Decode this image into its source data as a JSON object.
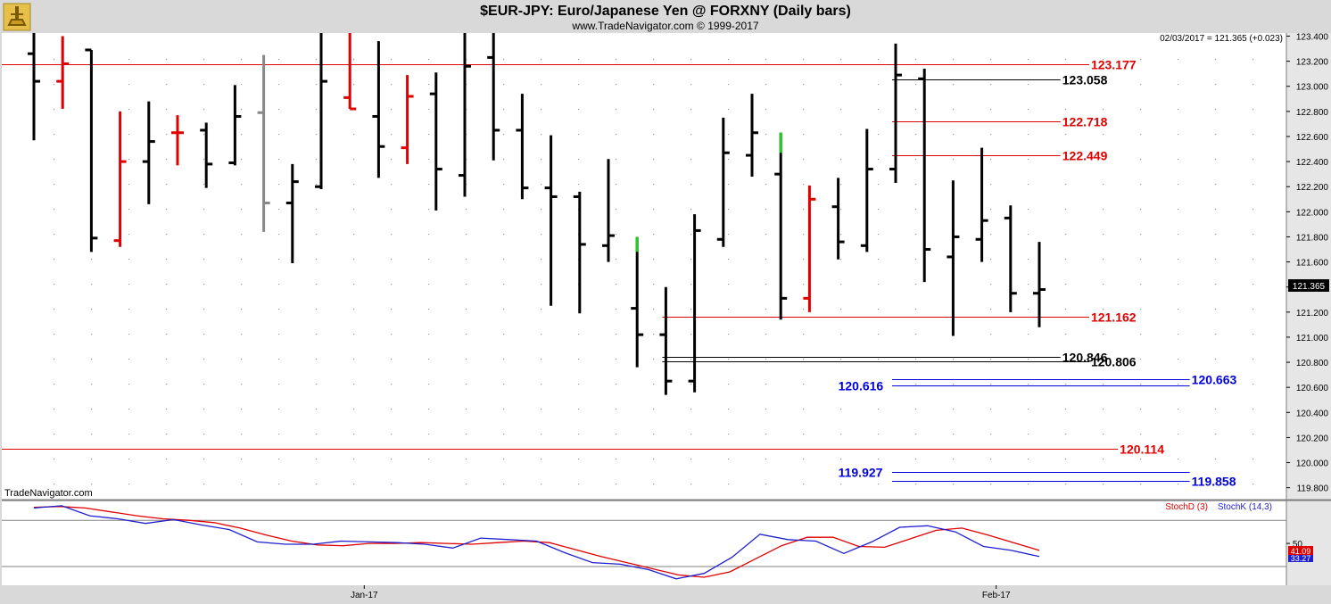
{
  "header": {
    "title": "$EUR-JPY:  Euro/Japanese Yen @ FORXNY  (Daily bars)",
    "subtitle": "www.TradeNavigator.com © 1999-2017",
    "watermark": "TradeNavigator.com",
    "last_info": "02/03/2017 = 121.365 (+0.023)"
  },
  "colors": {
    "background": "#ffffff",
    "frame": "#d9d9d9",
    "bar_up": "#000000",
    "bar_red": "#e00000",
    "bar_gray": "#888888",
    "bar_green": "#22cc22",
    "red_level": "#e00000",
    "black_level": "#000000",
    "blue_level": "#0000e0",
    "stoch_k": "#1f1fd0",
    "stoch_d": "#e00000"
  },
  "chart_data": [
    {
      "type": "ohlc",
      "title": "$EUR-JPY:  Euro/Japanese Yen @ FORXNY  (Daily bars)",
      "ylim": [
        119.65,
        123.5
      ],
      "y_ticks": [
        "123.400",
        "123.200",
        "123.000",
        "122.800",
        "122.600",
        "122.400",
        "122.200",
        "122.000",
        "121.800",
        "121.600",
        "121.400",
        "121.200",
        "121.000",
        "120.800",
        "120.600",
        "120.400",
        "120.200",
        "120.000",
        "119.800"
      ],
      "x_labels": [
        {
          "bar": 11.5,
          "label": "Jan-17"
        },
        {
          "bar": 33.5,
          "label": "Feb-17"
        }
      ],
      "last_price": "121.365",
      "bars": [
        {
          "o": 123.26,
          "h": 123.48,
          "l": 122.57,
          "c": 123.04,
          "color": "black"
        },
        {
          "o": 123.04,
          "h": 123.4,
          "l": 122.82,
          "c": 123.18,
          "color": "red"
        },
        {
          "o": 123.29,
          "h": 123.29,
          "l": 121.68,
          "c": 121.79,
          "color": "black"
        },
        {
          "o": 121.77,
          "h": 122.8,
          "l": 121.72,
          "c": 122.4,
          "color": "red"
        },
        {
          "o": 122.4,
          "h": 122.88,
          "l": 122.06,
          "c": 122.56,
          "color": "black"
        },
        {
          "o": 122.63,
          "h": 122.77,
          "l": 122.37,
          "c": 122.63,
          "color": "red"
        },
        {
          "o": 122.65,
          "h": 122.71,
          "l": 122.19,
          "c": 122.38,
          "color": "black"
        },
        {
          "o": 122.39,
          "h": 123.01,
          "l": 122.37,
          "c": 122.76,
          "color": "black"
        },
        {
          "o": 122.79,
          "h": 123.25,
          "l": 121.84,
          "c": 122.07,
          "color": "gray"
        },
        {
          "o": 122.07,
          "h": 122.38,
          "l": 121.59,
          "c": 122.24,
          "color": "black"
        },
        {
          "o": 122.2,
          "h": 123.48,
          "l": 122.18,
          "c": 123.04,
          "color": "black"
        },
        {
          "o": 122.91,
          "h": 123.48,
          "l": 122.82,
          "c": 122.82,
          "color": "red"
        },
        {
          "o": 122.76,
          "h": 123.36,
          "l": 122.27,
          "c": 122.52,
          "color": "black"
        },
        {
          "o": 122.51,
          "h": 123.09,
          "l": 122.38,
          "c": 122.92,
          "color": "red"
        },
        {
          "o": 122.94,
          "h": 123.11,
          "l": 122.01,
          "c": 122.34,
          "color": "black"
        },
        {
          "o": 122.29,
          "h": 123.48,
          "l": 122.12,
          "c": 123.16,
          "color": "black"
        },
        {
          "o": 123.23,
          "h": 123.48,
          "l": 122.41,
          "c": 122.65,
          "color": "black"
        },
        {
          "o": 122.65,
          "h": 122.94,
          "l": 122.1,
          "c": 122.19,
          "color": "black"
        },
        {
          "o": 122.19,
          "h": 122.61,
          "l": 121.25,
          "c": 122.12,
          "color": "black"
        },
        {
          "o": 122.12,
          "h": 122.16,
          "l": 121.19,
          "c": 121.74,
          "color": "black"
        },
        {
          "o": 121.73,
          "h": 122.42,
          "l": 121.6,
          "c": 121.81,
          "color": "black"
        },
        {
          "o": 121.23,
          "h": 121.8,
          "l": 120.76,
          "c": 121.02,
          "color": "black",
          "top_color": "green",
          "top_from": 121.68
        },
        {
          "o": 121.02,
          "h": 121.4,
          "l": 120.54,
          "c": 120.65,
          "color": "black"
        },
        {
          "o": 120.65,
          "h": 121.98,
          "l": 120.56,
          "c": 121.85,
          "color": "black"
        },
        {
          "o": 121.78,
          "h": 122.75,
          "l": 121.72,
          "c": 122.47,
          "color": "black"
        },
        {
          "o": 122.45,
          "h": 122.94,
          "l": 122.28,
          "c": 122.63,
          "color": "black"
        },
        {
          "o": 122.3,
          "h": 122.63,
          "l": 121.14,
          "c": 121.31,
          "color": "black",
          "top_color": "green",
          "top_from": 122.47
        },
        {
          "o": 121.31,
          "h": 122.21,
          "l": 121.2,
          "c": 122.1,
          "color": "red"
        },
        {
          "o": 122.04,
          "h": 122.27,
          "l": 121.62,
          "c": 121.76,
          "color": "black"
        },
        {
          "o": 121.73,
          "h": 122.66,
          "l": 121.68,
          "c": 122.34,
          "color": "black"
        },
        {
          "o": 122.34,
          "h": 123.34,
          "l": 122.23,
          "c": 123.09,
          "color": "black"
        },
        {
          "o": 123.06,
          "h": 123.14,
          "l": 121.44,
          "c": 121.7,
          "color": "black"
        },
        {
          "o": 121.64,
          "h": 122.25,
          "l": 121.01,
          "c": 121.8,
          "color": "black"
        },
        {
          "o": 121.78,
          "h": 122.51,
          "l": 121.6,
          "c": 121.93,
          "color": "black"
        },
        {
          "o": 121.95,
          "h": 122.05,
          "l": 121.2,
          "c": 121.35,
          "color": "black"
        },
        {
          "o": 121.35,
          "h": 121.76,
          "l": 121.08,
          "c": 121.38,
          "color": "black"
        }
      ],
      "levels": [
        {
          "value": 123.177,
          "label": "123.177",
          "color": "red",
          "from_bar": -1,
          "to_bar": 36.8,
          "label_bar": 36.8
        },
        {
          "value": 123.058,
          "label": "123.058",
          "color": "black",
          "from_bar": 30,
          "to_bar": 35.8,
          "label_bar": 35.8
        },
        {
          "value": 122.718,
          "label": "122.718",
          "color": "red",
          "from_bar": 30,
          "to_bar": 35.8,
          "label_bar": 35.8
        },
        {
          "value": 122.449,
          "label": "122.449",
          "color": "red",
          "from_bar": 30,
          "to_bar": 35.8,
          "label_bar": 35.8
        },
        {
          "value": 121.162,
          "label": "121.162",
          "color": "red",
          "from_bar": 22,
          "to_bar": 36.8,
          "label_bar": 36.8
        },
        {
          "value": 120.846,
          "label": "120.846",
          "color": "black",
          "from_bar": 22,
          "to_bar": 35.8,
          "label_bar": 35.8
        },
        {
          "value": 120.806,
          "label": "120.806",
          "color": "black",
          "from_bar": 22,
          "to_bar": 36.8,
          "label_bar": 36.8
        },
        {
          "value": 120.663,
          "label": "120.663",
          "color": "blue",
          "from_bar": 30,
          "to_bar": 40.3,
          "label_bar": 40.3
        },
        {
          "value": 120.616,
          "label": "120.616",
          "color": "blue",
          "from_bar": 30,
          "to_bar": 40.3,
          "label_bar": 28.0
        },
        {
          "value": 120.114,
          "label": "120.114",
          "color": "red",
          "from_bar": -1,
          "to_bar": 37.8,
          "label_bar": 37.8
        },
        {
          "value": 119.927,
          "label": "119.927",
          "color": "blue",
          "from_bar": 30,
          "to_bar": 40.3,
          "label_bar": 28.0
        },
        {
          "value": 119.858,
          "label": "119.858",
          "color": "blue",
          "from_bar": 30,
          "to_bar": 40.3,
          "label_bar": 40.3
        }
      ]
    },
    {
      "type": "line",
      "title": "Stochastics",
      "ylim": [
        0,
        100
      ],
      "y_ticks": [
        "50"
      ],
      "series": [
        {
          "name": "StochD (3)",
          "color": "#e00000",
          "last": "41.09",
          "values": [
            97,
            98,
            96,
            91,
            86,
            82,
            80,
            77,
            70,
            61,
            53,
            48,
            47,
            50,
            50,
            51,
            50,
            49,
            51,
            53,
            51,
            42,
            33,
            25,
            17,
            9,
            6,
            13,
            30,
            47,
            58,
            58,
            46,
            45,
            56,
            67,
            70,
            61,
            51,
            41
          ]
        },
        {
          "name": "StochK (14,3)",
          "color": "#1f1fd0",
          "last": "33.27",
          "values": [
            96,
            99,
            86,
            82,
            76,
            81,
            74,
            68,
            52,
            49,
            49,
            53,
            52,
            51,
            49,
            44,
            57,
            55,
            53,
            38,
            25,
            23,
            16,
            4,
            11,
            32,
            62,
            55,
            53,
            37,
            52,
            71,
            73,
            65,
            46,
            41,
            33
          ]
        }
      ]
    }
  ]
}
